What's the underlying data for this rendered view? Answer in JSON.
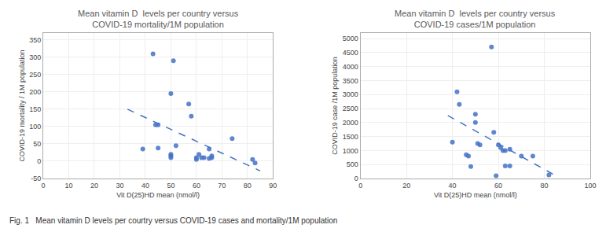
{
  "chart_data": [
    {
      "type": "scatter",
      "title": "Mean vitamin D  levels per country versus\nCOVID-19 mortality/1M population",
      "x_label": "Vit D(25)HD mean (nmol/l)",
      "y_label": "COVID-19 mortality / 1M population",
      "xlim": [
        0,
        90
      ],
      "ylim": [
        -50,
        370
      ],
      "xticks": [
        0,
        10,
        20,
        30,
        40,
        50,
        60,
        70,
        80,
        90
      ],
      "yticks": [
        -50,
        0,
        50,
        100,
        150,
        200,
        250,
        300,
        350
      ],
      "grid": true,
      "series": [
        {
          "type": "scatter",
          "marker": "circle",
          "color": "#4472C4",
          "x": [
            39,
            43,
            44,
            45,
            45,
            50,
            50,
            50,
            50,
            51,
            52,
            57,
            58,
            60,
            60,
            61,
            62,
            63,
            65,
            65,
            66,
            66,
            74,
            82,
            83
          ],
          "values": [
            35,
            310,
            105,
            105,
            38,
            195,
            20,
            15,
            10,
            290,
            45,
            165,
            130,
            5,
            10,
            20,
            10,
            10,
            35,
            8,
            10,
            15,
            65,
            5,
            -5
          ]
        },
        {
          "type": "line",
          "line_style": "dashed",
          "color": "#4472C4",
          "x": [
            33,
            85
          ],
          "values": [
            150,
            -28
          ]
        }
      ]
    },
    {
      "type": "scatter",
      "title": "Mean vitamin D  levels per country versus\nCOVID-19 cases/1M population",
      "x_label": "Vit D(25)HD mean (nmol/l)",
      "y_label": "COVID-19 case /1M population",
      "xlim": [
        0,
        100
      ],
      "ylim": [
        0,
        5200
      ],
      "xticks": [
        0,
        20,
        40,
        60,
        80,
        100
      ],
      "yticks": [
        0,
        500,
        1000,
        1500,
        2000,
        2500,
        3000,
        3500,
        4000,
        4500,
        5000
      ],
      "grid": true,
      "series": [
        {
          "type": "scatter",
          "marker": "circle",
          "color": "#4472C4",
          "x": [
            40,
            42,
            43,
            46,
            47,
            48,
            50,
            50,
            51,
            52,
            57,
            58,
            59,
            60,
            61,
            62,
            63,
            63,
            65,
            65,
            70,
            75,
            82
          ],
          "values": [
            1300,
            3100,
            2650,
            850,
            800,
            430,
            2300,
            2000,
            1250,
            1200,
            4700,
            1650,
            100,
            1200,
            1100,
            1000,
            1000,
            450,
            450,
            1050,
            800,
            800,
            130
          ]
        },
        {
          "type": "line",
          "line_style": "dashed",
          "color": "#4472C4",
          "x": [
            38,
            85
          ],
          "values": [
            2250,
            100
          ]
        }
      ]
    }
  ],
  "caption": "Fig. 1   Mean vitamin D levels per courtry versus COVID-19 cases and mortality/1M population"
}
